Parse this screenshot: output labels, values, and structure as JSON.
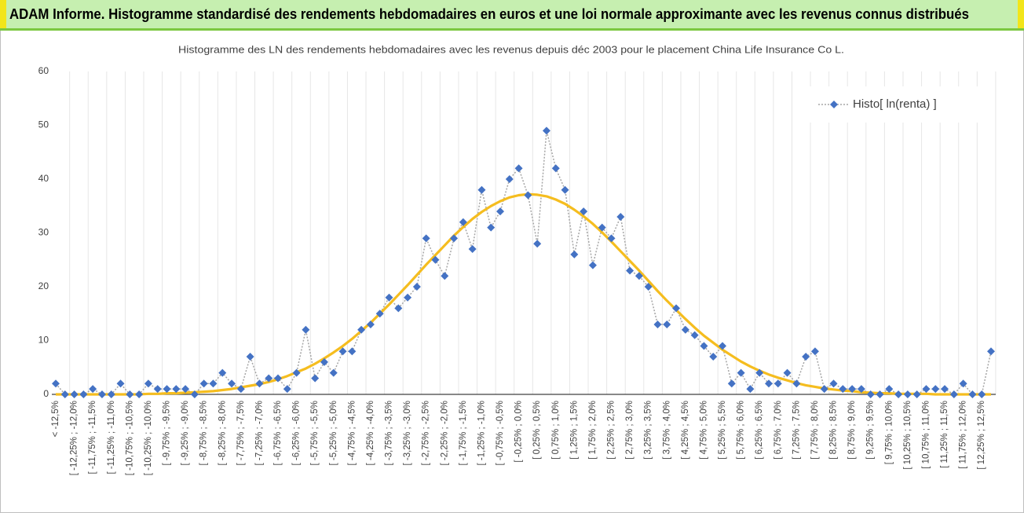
{
  "header": {
    "title": "ADAM Informe. Histogramme standardisé des rendements hebdomadaires en euros et une loi normale approximante avec les revenus connus distribués"
  },
  "chart_data": {
    "type": "line",
    "title": "Histogramme  des LN des rendements hebdomadaires avec les revenus depuis déc 2003 pour le placement China Life Insurance Co L.",
    "categories": [
      "< -12,5%",
      null,
      "[ -12,25% ; -12,0%",
      null,
      "[ -11,75% ; -11,5%",
      null,
      "[ -11,25% ; -11,0%",
      null,
      "[ -10,75% ; -10,5%",
      null,
      "[ -10,25% ; -10,0%",
      null,
      "[ -9,75% ; -9,5%",
      null,
      "[ -9,25% ; -9,0%",
      null,
      "[ -8,75% ; -8,5%",
      null,
      "[ -8,25% ; -8,0%",
      null,
      "[ -7,75% ; -7,5%",
      null,
      "[ -7,25% ; -7,0%",
      null,
      "[ -6,75% ; -6,5%",
      null,
      "[ -6,25% ; -6,0%",
      null,
      "[ -5,75% ; -5,5%",
      null,
      "[ -5,25% ; -5,0%",
      null,
      "[ -4,75% ; -4,5%",
      null,
      "[ -4,25% ; -4,0%",
      null,
      "[ -3,75% ; -3,5%",
      null,
      "[ -3,25% ; -3,0%",
      null,
      "[ -2,75% ; -2,5%",
      null,
      "[ -2,25% ; -2,0%",
      null,
      "[ -1,75% ; -1,5%",
      null,
      "[ -1,25% ; -1,0%",
      null,
      "[ -0,75% ; -0,5%",
      null,
      "[ -0,25% ; 0,0%",
      null,
      "[ 0,25% ; 0,5%",
      null,
      "[ 0,75% ; 1,0%",
      null,
      "[ 1,25% ; 1,5%",
      null,
      "[ 1,75% ; 2,0%",
      null,
      "[ 2,25% ; 2,5%",
      null,
      "[ 2,75% ; 3,0%",
      null,
      "[ 3,25% ; 3,5%",
      null,
      "[ 3,75% ; 4,0%",
      null,
      "[ 4,25% ; 4,5%",
      null,
      "[ 4,75% ; 5,0%",
      null,
      "[ 5,25% ; 5,5%",
      null,
      "[ 5,75% ; 6,0%",
      null,
      "[ 6,25% ; 6,5%",
      null,
      "[ 6,75% ; 7,0%",
      null,
      "[ 7,25% ; 7,5%",
      null,
      "[ 7,75% ; 8,0%",
      null,
      "[ 8,25% ; 8,5%",
      null,
      "[ 8,75% ; 9,0%",
      null,
      "[ 9,25% ; 9,5%",
      null,
      "[ 9,75% ; 10,0%",
      null,
      "[ 10,25% ; 10,5%",
      null,
      "[ 10,75% ; 11,0%",
      null,
      "[ 11,25% ; 11,5%",
      null,
      "[ 11,75% ; 12,0%",
      null,
      "[ 12,25% ; 12,5%",
      null
    ],
    "series": [
      {
        "name": "Histo[ ln(renta) ]",
        "color": "#4472c4",
        "line_color": "#a5a5a5",
        "values": [
          2,
          0,
          0,
          0,
          1,
          0,
          0,
          2,
          0,
          0,
          2,
          1,
          1,
          1,
          1,
          0,
          2,
          2,
          4,
          2,
          1,
          7,
          2,
          3,
          3,
          1,
          4,
          12,
          3,
          6,
          4,
          8,
          8,
          12,
          13,
          15,
          18,
          16,
          18,
          20,
          29,
          25,
          22,
          29,
          32,
          27,
          38,
          31,
          34,
          40,
          42,
          37,
          28,
          49,
          42,
          38,
          26,
          34,
          24,
          31,
          29,
          33,
          23,
          22,
          20,
          13,
          13,
          16,
          12,
          11,
          9,
          7,
          9,
          2,
          4,
          1,
          4,
          2,
          2,
          4,
          2,
          7,
          8,
          1,
          2,
          1,
          1,
          1,
          0,
          0,
          1,
          0,
          0,
          0,
          1,
          1,
          1,
          0,
          2,
          0,
          0,
          8
        ]
      },
      {
        "color": "#f5bd1f",
        "values": [
          0,
          0,
          0,
          0,
          0,
          0,
          0,
          0,
          0,
          0,
          0.1,
          0.1,
          0.2,
          0.2,
          0.3,
          0.4,
          0.5,
          0.6,
          0.8,
          1.0,
          1.3,
          1.6,
          1.9,
          2.3,
          2.8,
          3.4,
          4.1,
          4.8,
          5.7,
          6.7,
          7.8,
          9.0,
          10.3,
          11.8,
          13.3,
          15.0,
          16.7,
          18.5,
          20.3,
          22.2,
          24.1,
          25.9,
          27.7,
          29.5,
          31.1,
          32.6,
          33.9,
          35.0,
          35.9,
          36.6,
          37.0,
          37.2,
          37.1,
          36.8,
          36.2,
          35.4,
          34.3,
          33.1,
          31.7,
          30.1,
          28.4,
          26.6,
          24.8,
          23.0,
          21.1,
          19.2,
          17.4,
          15.7,
          14.0,
          12.4,
          10.9,
          9.6,
          8.3,
          7.2,
          6.1,
          5.2,
          4.4,
          3.7,
          3.1,
          2.6,
          2.1,
          1.7,
          1.4,
          1.1,
          0.9,
          0.7,
          0.6,
          0.4,
          0.3,
          0.2,
          0.2,
          0.1,
          0.1,
          0.1,
          0.1,
          0,
          0,
          0,
          0,
          0,
          0,
          0
        ]
      }
    ],
    "ylim": [
      0,
      60
    ],
    "yticks": [
      0,
      10,
      20,
      30,
      40,
      50,
      60
    ],
    "legend": "top-right"
  }
}
